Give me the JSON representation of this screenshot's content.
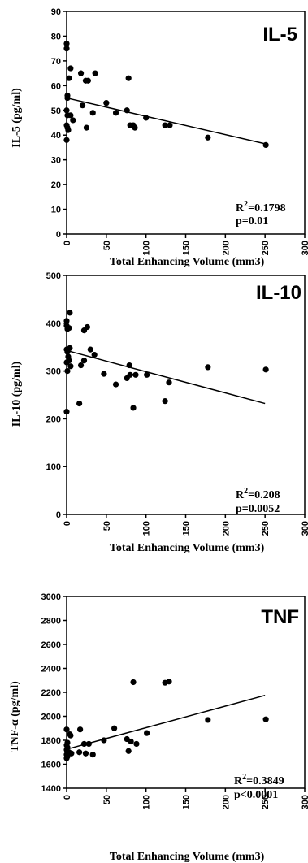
{
  "chart_data": [
    {
      "type": "scatter",
      "title": "IL-5",
      "xlabel": "Total Enhancing Volume (mm3)",
      "ylabel": "IL-5 (pg/ml)",
      "xlim": [
        0,
        300
      ],
      "ylim": [
        0,
        90
      ],
      "x_ticks": [
        0,
        50,
        100,
        150,
        200,
        250,
        300
      ],
      "y_ticks": [
        0,
        10,
        20,
        30,
        40,
        50,
        60,
        70,
        80,
        90
      ],
      "x_tick_labels": [
        "0",
        "50",
        "100",
        "150",
        "200",
        "250",
        "300"
      ],
      "y_tick_labels": [
        "0",
        "10",
        "20",
        "30",
        "40",
        "50",
        "60",
        "70",
        "80",
        "90"
      ],
      "points": [
        {
          "x": 0,
          "y": 77
        },
        {
          "x": 0,
          "y": 75
        },
        {
          "x": 1,
          "y": 56
        },
        {
          "x": 1,
          "y": 55
        },
        {
          "x": 0,
          "y": 50
        },
        {
          "x": 1,
          "y": 48
        },
        {
          "x": 0,
          "y": 44
        },
        {
          "x": 1,
          "y": 43
        },
        {
          "x": 2,
          "y": 42
        },
        {
          "x": 0,
          "y": 38
        },
        {
          "x": 5,
          "y": 67
        },
        {
          "x": 3,
          "y": 63
        },
        {
          "x": 5,
          "y": 48
        },
        {
          "x": 8,
          "y": 46
        },
        {
          "x": 18,
          "y": 65
        },
        {
          "x": 20,
          "y": 52
        },
        {
          "x": 24,
          "y": 62
        },
        {
          "x": 27,
          "y": 62
        },
        {
          "x": 25,
          "y": 43
        },
        {
          "x": 33,
          "y": 49
        },
        {
          "x": 36,
          "y": 65
        },
        {
          "x": 50,
          "y": 53
        },
        {
          "x": 62,
          "y": 49
        },
        {
          "x": 78,
          "y": 63
        },
        {
          "x": 76,
          "y": 50
        },
        {
          "x": 80,
          "y": 44
        },
        {
          "x": 84,
          "y": 44
        },
        {
          "x": 86,
          "y": 43
        },
        {
          "x": 100,
          "y": 47
        },
        {
          "x": 124,
          "y": 44
        },
        {
          "x": 130,
          "y": 44
        },
        {
          "x": 178,
          "y": 39
        },
        {
          "x": 251,
          "y": 36
        }
      ],
      "trendline": [
        [
          0,
          55
        ],
        [
          250,
          36.5
        ]
      ],
      "r2_label": "R",
      "r2_sup": "2",
      "r2_value": "=0.1798",
      "p_label": "p=0.01"
    },
    {
      "type": "scatter",
      "title": "IL-10",
      "xlabel": "Total Enhancing Volume (mm3)",
      "ylabel": "IL-10 (pg/ml)",
      "xlim": [
        0,
        300
      ],
      "ylim": [
        0,
        500
      ],
      "x_ticks": [
        0,
        50,
        100,
        150,
        200,
        250,
        300
      ],
      "y_ticks": [
        0,
        100,
        200,
        300,
        400,
        500
      ],
      "x_tick_labels": [
        "0",
        "50",
        "100",
        "150",
        "200",
        "250",
        "300"
      ],
      "y_tick_labels": [
        "0",
        "100",
        "200",
        "300",
        "400",
        "500"
      ],
      "points": [
        {
          "x": 0,
          "y": 405
        },
        {
          "x": 0,
          "y": 395
        },
        {
          "x": 1,
          "y": 388
        },
        {
          "x": 0,
          "y": 345
        },
        {
          "x": 1,
          "y": 340
        },
        {
          "x": 2,
          "y": 330
        },
        {
          "x": 0,
          "y": 318
        },
        {
          "x": 1,
          "y": 300
        },
        {
          "x": 0,
          "y": 215
        },
        {
          "x": 4,
          "y": 422
        },
        {
          "x": 3,
          "y": 390
        },
        {
          "x": 4,
          "y": 348
        },
        {
          "x": 3,
          "y": 322
        },
        {
          "x": 5,
          "y": 310
        },
        {
          "x": 18,
          "y": 312
        },
        {
          "x": 16,
          "y": 232
        },
        {
          "x": 22,
          "y": 385
        },
        {
          "x": 26,
          "y": 392
        },
        {
          "x": 22,
          "y": 322
        },
        {
          "x": 30,
          "y": 345
        },
        {
          "x": 35,
          "y": 334
        },
        {
          "x": 47,
          "y": 294
        },
        {
          "x": 62,
          "y": 272
        },
        {
          "x": 76,
          "y": 285
        },
        {
          "x": 79,
          "y": 312
        },
        {
          "x": 80,
          "y": 292
        },
        {
          "x": 84,
          "y": 223
        },
        {
          "x": 87,
          "y": 292
        },
        {
          "x": 101,
          "y": 292
        },
        {
          "x": 124,
          "y": 237
        },
        {
          "x": 129,
          "y": 276
        },
        {
          "x": 178,
          "y": 308
        },
        {
          "x": 251,
          "y": 303
        }
      ],
      "trendline": [
        [
          0,
          343
        ],
        [
          250,
          232
        ]
      ],
      "r2_label": "R",
      "r2_sup": "2",
      "r2_value": "=0.208",
      "p_label": "p=0.0052"
    },
    {
      "type": "scatter",
      "title": "TNF",
      "xlabel": "Total Enhancing Volume (mm3)",
      "ylabel": "TNF-α (pg/ml)",
      "xlim": [
        0,
        300
      ],
      "ylim": [
        1400,
        3000
      ],
      "x_ticks": [
        0,
        50,
        100,
        150,
        200,
        250,
        300
      ],
      "y_ticks": [
        1400,
        1600,
        1800,
        2000,
        2200,
        2400,
        2600,
        2800,
        3000
      ],
      "x_tick_labels": [
        "0",
        "50",
        "100",
        "150",
        "200",
        "250",
        "300"
      ],
      "y_tick_labels": [
        "1400",
        "1600",
        "1800",
        "2000",
        "2200",
        "2400",
        "2600",
        "2800",
        "3000"
      ],
      "points": [
        {
          "x": 0,
          "y": 1890
        },
        {
          "x": 1,
          "y": 1780
        },
        {
          "x": 0,
          "y": 1760
        },
        {
          "x": 1,
          "y": 1740
        },
        {
          "x": 0,
          "y": 1720
        },
        {
          "x": 1,
          "y": 1700
        },
        {
          "x": 2,
          "y": 1690
        },
        {
          "x": 0,
          "y": 1680
        },
        {
          "x": 1,
          "y": 1665
        },
        {
          "x": 0,
          "y": 1650
        },
        {
          "x": 4,
          "y": 1850
        },
        {
          "x": 5,
          "y": 1840
        },
        {
          "x": 3,
          "y": 1700
        },
        {
          "x": 6,
          "y": 1690
        },
        {
          "x": 17,
          "y": 1890
        },
        {
          "x": 16,
          "y": 1700
        },
        {
          "x": 22,
          "y": 1770
        },
        {
          "x": 24,
          "y": 1690
        },
        {
          "x": 28,
          "y": 1770
        },
        {
          "x": 33,
          "y": 1680
        },
        {
          "x": 47,
          "y": 1800
        },
        {
          "x": 60,
          "y": 1900
        },
        {
          "x": 76,
          "y": 1810
        },
        {
          "x": 78,
          "y": 1710
        },
        {
          "x": 81,
          "y": 1790
        },
        {
          "x": 84,
          "y": 2285
        },
        {
          "x": 88,
          "y": 1770
        },
        {
          "x": 101,
          "y": 1860
        },
        {
          "x": 124,
          "y": 2280
        },
        {
          "x": 129,
          "y": 2290
        },
        {
          "x": 178,
          "y": 1970
        },
        {
          "x": 251,
          "y": 1975
        }
      ],
      "trendline": [
        [
          0,
          1725
        ],
        [
          250,
          2175
        ]
      ],
      "r2_label": "R",
      "r2_sup": "2",
      "r2_value": "=0.3849",
      "p_label": "p<0.0001"
    }
  ]
}
